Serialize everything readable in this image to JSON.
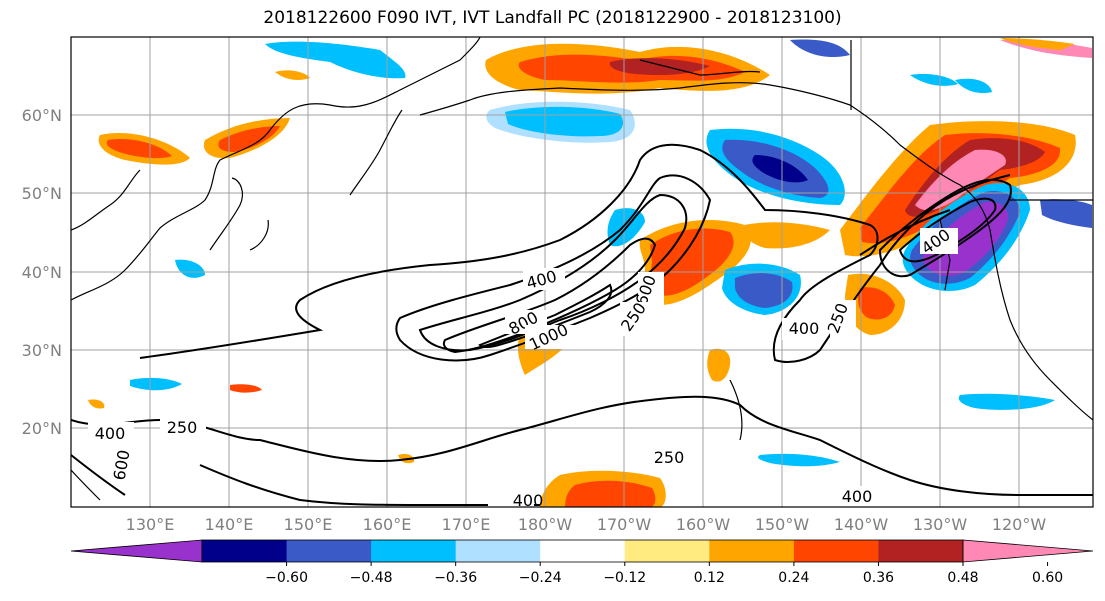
{
  "title": "2018122600 F090 IVT, IVT Landfall PC (2018122900 - 2018123100)",
  "map": {
    "lat_ticks": [
      "20°N",
      "30°N",
      "40°N",
      "50°N",
      "60°N"
    ],
    "lon_ticks": [
      "130°E",
      "140°E",
      "150°E",
      "160°E",
      "170°E",
      "180°W",
      "170°W",
      "160°W",
      "150°W",
      "140°W",
      "130°W",
      "120°W"
    ]
  },
  "contour_labels": [
    "400",
    "250",
    "400",
    "600",
    "400",
    "800",
    "1000",
    "600",
    "250",
    "400",
    "250",
    "250",
    "400",
    "400"
  ],
  "colorbar": {
    "colors": [
      "#9932cc",
      "#00008b",
      "#3a5bc7",
      "#00bfff",
      "#b0e0ff",
      "#ffffff",
      "#ffeb80",
      "#ffa500",
      "#ff4500",
      "#b22222",
      "#ff88b4"
    ],
    "tick_labels": [
      "−0.60",
      "−0.48",
      "−0.36",
      "−0.24",
      "−0.12",
      "0.12",
      "0.24",
      "0.36",
      "0.48",
      "0.60"
    ]
  },
  "colors": {
    "grid": "#a0a0a0",
    "coast": "#000000",
    "contour": "#000000"
  }
}
